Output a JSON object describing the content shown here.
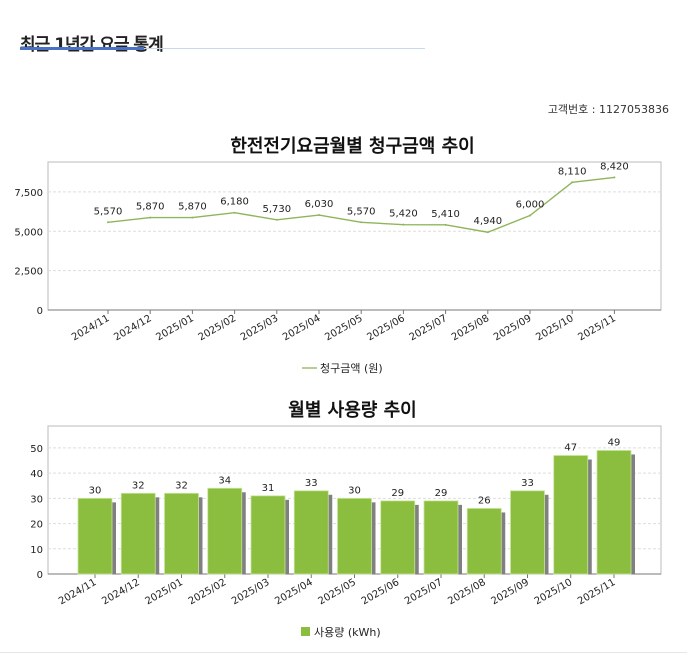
{
  "header": {
    "title": "최근 1년간 요금 통계",
    "customer_label": "고객번호 :",
    "customer_number": "1127053836"
  },
  "chart_data": [
    {
      "type": "line",
      "title": "한전전기요금월별 청구금액 추이",
      "categories": [
        "2024/11",
        "2024/12",
        "2025/01",
        "2025/02",
        "2025/03",
        "2025/04",
        "2025/05",
        "2025/06",
        "2025/07",
        "2025/08",
        "2025/09",
        "2025/10",
        "2025/11"
      ],
      "series": [
        {
          "name": "청구금액 (원)",
          "values": [
            5570,
            5870,
            5870,
            6180,
            5730,
            6030,
            5570,
            5420,
            5410,
            4940,
            6000,
            8110,
            8420
          ]
        }
      ],
      "yticks": [
        0,
        2500,
        5000,
        7500
      ],
      "ylim": [
        0,
        9400
      ],
      "grid": true,
      "legend": "bottom",
      "color": "#8fb55a"
    },
    {
      "type": "bar",
      "title": "월별 사용량 추이",
      "categories": [
        "2024/11",
        "2024/12",
        "2025/01",
        "2025/02",
        "2025/03",
        "2025/04",
        "2025/05",
        "2025/06",
        "2025/07",
        "2025/08",
        "2025/09",
        "2025/10",
        "2025/11"
      ],
      "series": [
        {
          "name": "사용량 (kWh)",
          "values": [
            30,
            32,
            32,
            34,
            31,
            33,
            30,
            29,
            29,
            26,
            33,
            47,
            49
          ]
        }
      ],
      "yticks": [
        0,
        10,
        20,
        30,
        40,
        50
      ],
      "ylim": [
        0,
        58.7
      ],
      "grid": true,
      "legend": "bottom",
      "color": "#8bbd3f"
    }
  ]
}
